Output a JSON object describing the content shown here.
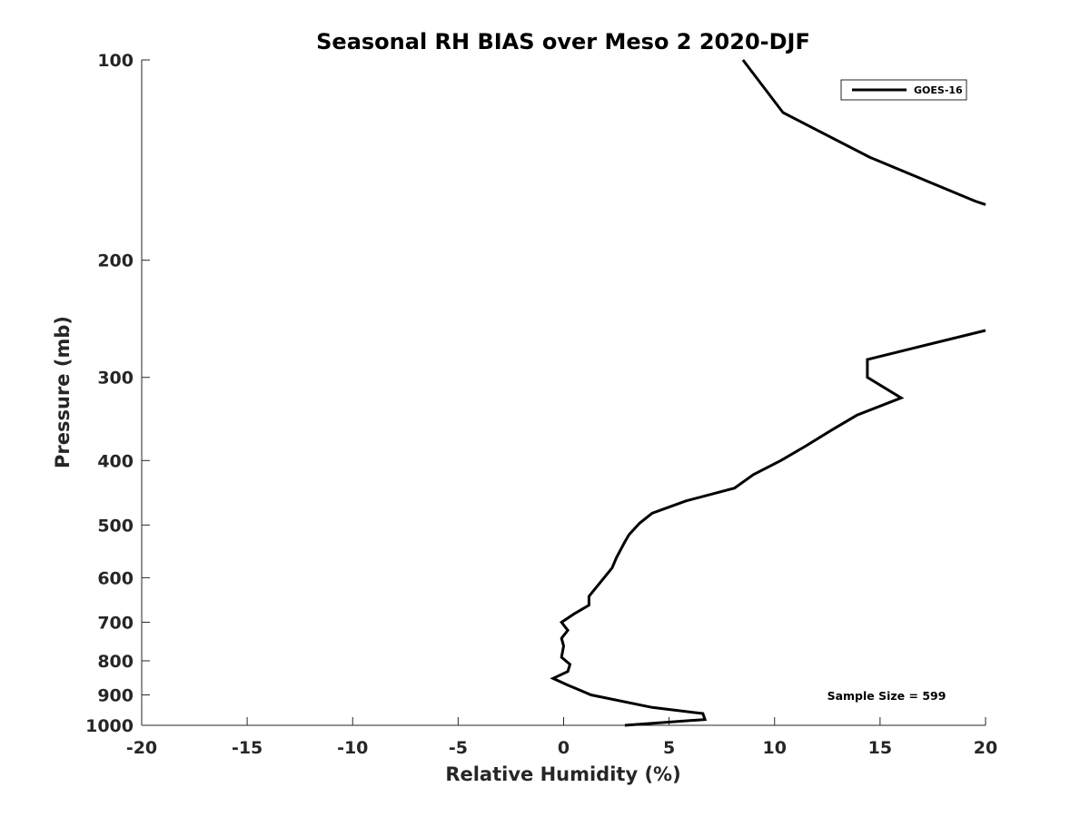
{
  "chart_data": {
    "type": "line",
    "title": "Seasonal RH BIAS over Meso 2  2020-DJF",
    "xlabel": "Relative Humidity (%)",
    "ylabel": "Pressure (mb)",
    "xlim": [
      -20,
      20
    ],
    "ylim": [
      100,
      1000
    ],
    "yscale": "log",
    "y_reversed": true,
    "grid": false,
    "x_ticks": [
      -20,
      -15,
      -10,
      -5,
      0,
      5,
      10,
      15,
      20
    ],
    "x_tick_labels": [
      "-20",
      "-15",
      "-10",
      "-5",
      "0",
      "5",
      "10",
      "15",
      "20"
    ],
    "y_ticks": [
      100,
      200,
      300,
      400,
      500,
      600,
      700,
      800,
      900,
      1000
    ],
    "y_tick_labels": [
      "100",
      "200",
      "300",
      "400",
      "500",
      "600",
      "700",
      "800",
      "900",
      "1000"
    ],
    "legend": {
      "position": "top-right",
      "entries": [
        "GOES-16"
      ]
    },
    "annotations": [
      {
        "text": "Sample Size = 599",
        "position": "bottom-right"
      }
    ],
    "series": [
      {
        "name": "GOES-16",
        "color": "#000000",
        "segments": [
          {
            "x": [
              8.5,
              10.4,
              14.5,
              19.5,
              20
            ],
            "y": [
              100,
              120,
              140,
              163,
              165
            ]
          },
          {
            "x": [
              20,
              14.4,
              14.4,
              16.0,
              13.9,
              12.7,
              11.5,
              10.3,
              9.0,
              8.1,
              5.8,
              4.2,
              3.6,
              3.1,
              2.9,
              2.5,
              2.3,
              1.2,
              1.2,
              0.5,
              -0.1,
              0.2,
              -0.1,
              0.0,
              -0.1,
              0.3,
              0.2,
              -0.5,
              0.2,
              1.3,
              4.2,
              6.6,
              6.7,
              2.9
            ],
            "y": [
              255,
              282,
              300,
              322,
              342,
              360,
              380,
              400,
              420,
              440,
              460,
              480,
              497,
              517,
              530,
              560,
              580,
              640,
              660,
              680,
              700,
              720,
              740,
              760,
              790,
              810,
              830,
              850,
              870,
              900,
              940,
              960,
              980,
              1000
            ]
          }
        ]
      }
    ]
  }
}
